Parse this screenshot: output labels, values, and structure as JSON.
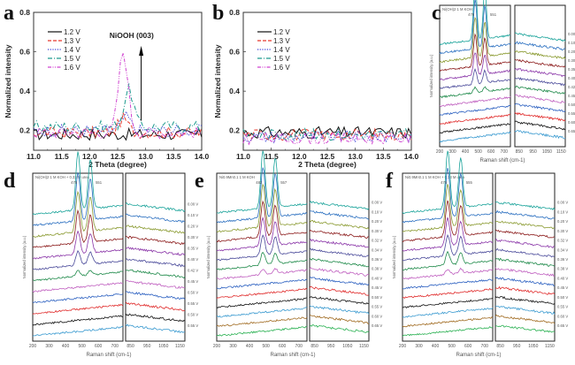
{
  "figure": {
    "panel_letters": [
      "a",
      "b",
      "c",
      "d",
      "e",
      "f"
    ]
  },
  "chart_data": [
    {
      "id": "a",
      "type": "line",
      "title": "",
      "xlabel": "2 Theta (degree)",
      "ylabel": "Normalized intensity",
      "xlim": [
        11.0,
        14.0
      ],
      "ylim": [
        0.1,
        0.8
      ],
      "xticks": [
        "11.0",
        "11.5",
        "12.0",
        "12.5",
        "13.0",
        "13.5",
        "14.0"
      ],
      "yticks": [
        "0.2",
        "0.4",
        "0.6",
        "0.8"
      ],
      "legend": "top-left",
      "annotation": "NiOOH (003)",
      "annotation_arrow": "up",
      "series": [
        {
          "name": "1.2 V",
          "color": "#111111",
          "dash": "solid",
          "baseline": 0.18,
          "peak": null
        },
        {
          "name": "1.3 V",
          "color": "#e8382c",
          "dash": "dashed",
          "baseline": 0.19,
          "peak": {
            "x": 12.6,
            "y": 0.26
          }
        },
        {
          "name": "1.4 V",
          "color": "#3a3fd8",
          "dash": "dotted",
          "baseline": 0.2,
          "peak": {
            "x": 12.65,
            "y": 0.27
          }
        },
        {
          "name": "1.5 V",
          "color": "#1d9a8e",
          "dash": "dashdot",
          "baseline": 0.22,
          "peak": {
            "x": 12.7,
            "y": 0.41
          }
        },
        {
          "name": "1.6 V",
          "color": "#d043d0",
          "dash": "dashdotdot",
          "baseline": 0.19,
          "peak": {
            "x": 12.6,
            "y": 0.6
          }
        }
      ]
    },
    {
      "id": "b",
      "type": "line",
      "title": "",
      "xlabel": "2 Theta (degree)",
      "ylabel": "Normalized intensity",
      "xlim": [
        11.0,
        14.0
      ],
      "ylim": [
        0.1,
        0.8
      ],
      "xticks": [
        "11.0",
        "11.5",
        "12.0",
        "12.5",
        "13.0",
        "13.5",
        "14.0"
      ],
      "yticks": [
        "0.2",
        "0.4",
        "0.6",
        "0.8"
      ],
      "legend": "top-left",
      "series": [
        {
          "name": "1.2 V",
          "color": "#111111",
          "dash": "solid",
          "baseline": 0.19
        },
        {
          "name": "1.3 V",
          "color": "#e8382c",
          "dash": "dashed",
          "baseline": 0.18
        },
        {
          "name": "1.4 V",
          "color": "#3a3fd8",
          "dash": "dotted",
          "baseline": 0.17
        },
        {
          "name": "1.5 V",
          "color": "#1d9a8e",
          "dash": "dashdot",
          "baseline": 0.18
        },
        {
          "name": "1.6 V",
          "color": "#d043d0",
          "dash": "dashdotdot",
          "baseline": 0.16
        }
      ]
    },
    {
      "id": "c",
      "type": "line",
      "title": "Ni(OH)2 1 M KOH",
      "xlabel": "Raman shift (cm-1)",
      "ylabel": "Normalized intensity (a.u.)",
      "xlim_left": [
        200,
        750
      ],
      "xlim_right": [
        820,
        1180
      ],
      "xticks_left": [
        "200",
        "300",
        "400",
        "500",
        "600",
        "700"
      ],
      "xticks_right": [
        "850",
        "950",
        "1050",
        "1150"
      ],
      "peaks": [
        "476",
        "551",
        "460",
        "560",
        "455",
        "500"
      ],
      "series_labels": [
        "0.65 V",
        "0.60 V",
        "0.55 V",
        "0.50 V",
        "0.45 V",
        "0.42 V",
        "0.40 V",
        "0.35 V",
        "0.30 V",
        "0.20 V",
        "0.10 V",
        "0.00 V"
      ]
    },
    {
      "id": "d",
      "type": "line",
      "title": "Ni(OH)2 1 M KOH + 0.33 M urea",
      "xlabel": "Raman shift (cm-1)",
      "ylabel": "Normalized intensity (a.u.)",
      "xlim_left": [
        200,
        750
      ],
      "xlim_right": [
        820,
        1180
      ],
      "xticks_left": [
        "200",
        "300",
        "400",
        "500",
        "600",
        "700"
      ],
      "xticks_right": [
        "850",
        "950",
        "1050",
        "1150"
      ],
      "peaks": [
        "476",
        "551",
        "486",
        "456",
        "495",
        "1004"
      ],
      "series_labels": [
        "0.55 V",
        "0.50 V",
        "0.55 V",
        "0.50 V",
        "0.45 V",
        "0.42 V",
        "0.40 V",
        "0.35 V",
        "0.30 V",
        "0.20 V",
        "0.10 V",
        "0.00 V"
      ]
    },
    {
      "id": "e",
      "type": "line",
      "title": "Ni0.9Mn0.1 1 M KOH",
      "xlabel": "Raman shift (cm-1)",
      "ylabel": "Normalized intensity (a.u.)",
      "xlim_left": [
        200,
        750
      ],
      "xlim_right": [
        820,
        1180
      ],
      "xticks_left": [
        "200",
        "300",
        "400",
        "500",
        "600",
        "700"
      ],
      "xticks_right": [
        "850",
        "950",
        "1050",
        "1150"
      ],
      "peaks": [
        "482",
        "557",
        "551",
        "460-498 536",
        "603"
      ],
      "series_labels": [
        "0.65 V",
        "0.60 V",
        "0.55 V",
        "0.50 V",
        "0.45 V",
        "0.40 V",
        "0.38 V",
        "0.36 V",
        "0.34 V",
        "0.32 V",
        "0.30 V",
        "0.20 V",
        "0.10 V",
        "0.00 V"
      ]
    },
    {
      "id": "f",
      "type": "line",
      "title": "Ni0.9Mn0.1 1 M KOH + 0.33 M urea",
      "xlabel": "Raman shift (cm-1)",
      "ylabel": "Normalized intensity (a.u.)",
      "xlim_left": [
        200,
        750
      ],
      "xlim_right": [
        820,
        1180
      ],
      "xticks_left": [
        "200",
        "300",
        "400",
        "500",
        "600",
        "700"
      ],
      "xticks_right": [
        "850",
        "950",
        "1050",
        "1150"
      ],
      "peaks": [
        "476",
        "555",
        "1005",
        "460-498 540",
        "604"
      ],
      "series_labels": [
        "0.65 V",
        "0.60 V",
        "0.55 V",
        "0.50 V",
        "0.45 V",
        "0.40 V",
        "0.38 V",
        "0.36 V",
        "0.34 V",
        "0.32 V",
        "0.30 V",
        "0.20 V",
        "0.10 V",
        "0.00 V"
      ]
    }
  ],
  "raman_colors": [
    "#1aa39a",
    "#2a6fc0",
    "#8a9a30",
    "#8b1a1a",
    "#8a35a8",
    "#4a4a9a",
    "#1f8a4a",
    "#c060c0",
    "#2a5fc0",
    "#e02a2a",
    "#111111",
    "#3a9ad0",
    "#a06a20",
    "#28b050"
  ]
}
